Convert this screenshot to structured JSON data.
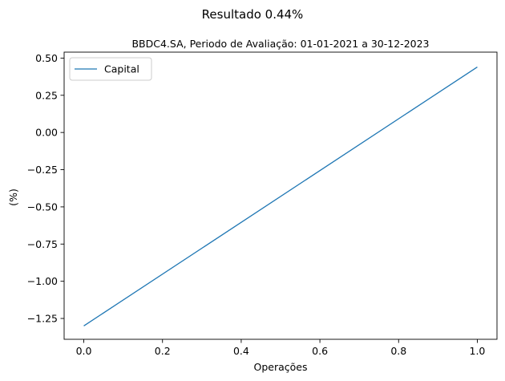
{
  "chart_data": {
    "type": "line",
    "title": "Resultado 0.44%",
    "subtitle": "BBDC4.SA, Periodo de Avaliação: 01-01-2021 a 30-12-2023",
    "xlabel": "Operações",
    "ylabel": "(%)",
    "xlim": [
      -0.05,
      1.05
    ],
    "ylim": [
      -1.39,
      0.54
    ],
    "xticks": [
      0.0,
      0.2,
      0.4,
      0.6,
      0.8,
      1.0
    ],
    "xtick_labels": [
      "0.0",
      "0.2",
      "0.4",
      "0.6",
      "0.8",
      "1.0"
    ],
    "yticks": [
      -1.25,
      -1.0,
      -0.75,
      -0.5,
      -0.25,
      0.0,
      0.25,
      0.5
    ],
    "ytick_labels": [
      "−1.25",
      "−1.00",
      "−0.75",
      "−0.50",
      "−0.25",
      "0.00",
      "0.25",
      "0.50"
    ],
    "grid": false,
    "legend_position": "top-left",
    "series": [
      {
        "name": "Capital",
        "color": "#1f77b4",
        "x": [
          0,
          1
        ],
        "y": [
          -1.3,
          0.44
        ]
      }
    ]
  }
}
